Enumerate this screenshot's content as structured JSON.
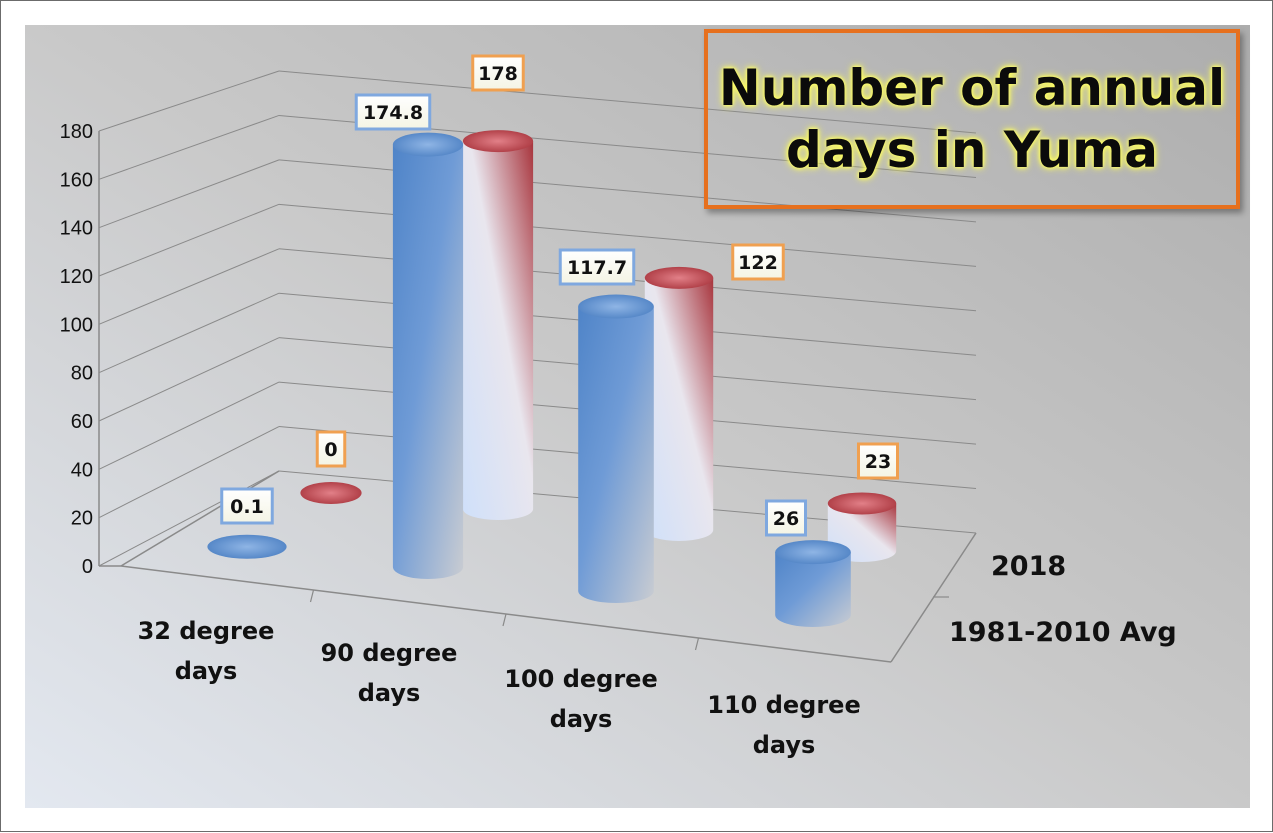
{
  "chart_data": {
    "type": "bar",
    "style": "3d-cylinder",
    "title": "Number of annual\ndays in Yuma",
    "categories": [
      "32 degree days",
      "90 degree days",
      "100 degree days",
      "110 degree days"
    ],
    "series": [
      {
        "name": "1981-2010 Avg",
        "values": [
          0.1,
          174.8,
          117.7,
          26
        ],
        "color": "#5a8fd0",
        "label_border": "#7fa8df"
      },
      {
        "name": "2018",
        "values": [
          0,
          178,
          122,
          23
        ],
        "color": "#b83a44",
        "label_border": "#f0a050"
      }
    ],
    "y_ticks": [
      "0",
      "20",
      "40",
      "60",
      "80",
      "100",
      "120",
      "140",
      "160",
      "180"
    ],
    "ylim": [
      0,
      180
    ],
    "grid": true,
    "legend": "series axis labels on right depth axis",
    "title_border_color": "#e6701e",
    "title_glow_color": "#ffff66"
  }
}
